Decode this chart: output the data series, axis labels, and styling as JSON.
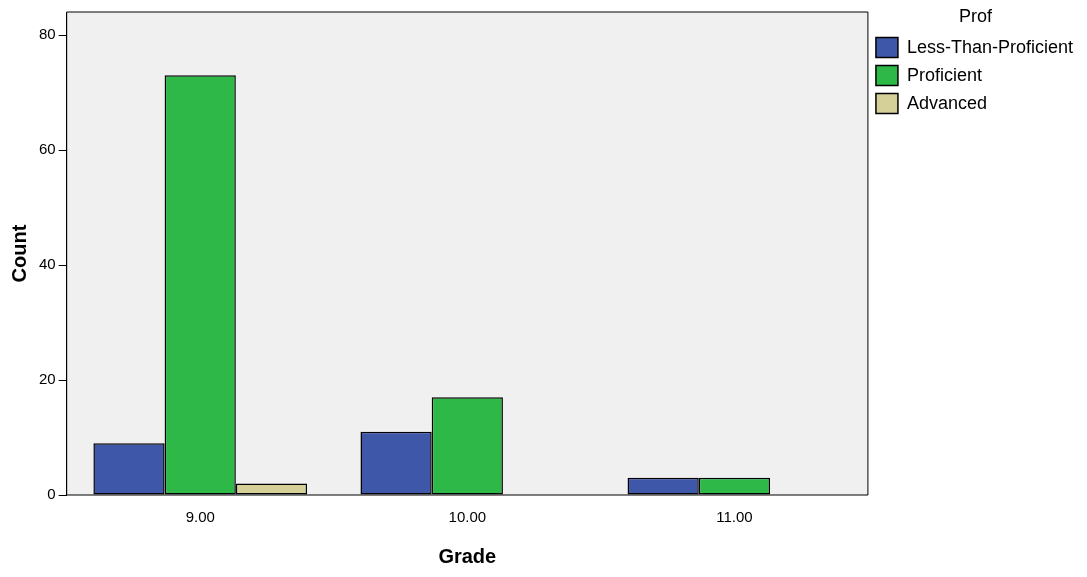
{
  "chart_data": {
    "type": "bar",
    "xlabel": "Grade",
    "ylabel": "Count",
    "legend_title": "Prof",
    "legend": "right",
    "grid": false,
    "categories": [
      "9.00",
      "10.00",
      "11.00"
    ],
    "series": [
      {
        "name": "Less-Than-Proficient",
        "color": "#3f57a8",
        "values": [
          9,
          11,
          3
        ]
      },
      {
        "name": "Proficient",
        "color": "#2eb848",
        "values": [
          73,
          17,
          3
        ]
      },
      {
        "name": "Advanced",
        "color": "#d5cf98",
        "values": [
          2,
          0,
          0
        ]
      }
    ],
    "ylim": [
      0,
      84
    ],
    "yticks": [
      0,
      20,
      40,
      60,
      80
    ]
  }
}
